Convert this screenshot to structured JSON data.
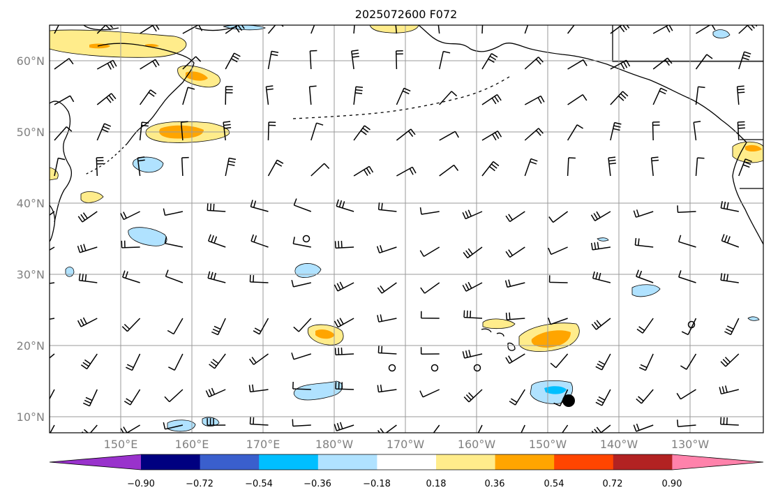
{
  "title": "2025072600 F072",
  "map": {
    "lat_labels": [
      "60°N",
      "50°N",
      "40°N",
      "30°N",
      "20°N",
      "10°N"
    ],
    "lon_labels": [
      "150°E",
      "160°E",
      "170°E",
      "180°W",
      "170°W",
      "160°W",
      "150°W",
      "140°W",
      "130°W"
    ],
    "calm_marker_color": "#000000"
  },
  "colorbar": {
    "colors": [
      "#9932cc",
      "#000080",
      "#3a5fcd",
      "#00bfff",
      "#b0e2ff",
      "#ffffff",
      "#ffec8b",
      "#ffa500",
      "#ff4500",
      "#b22222",
      "#ff82ab"
    ],
    "tick_labels": [
      "−0.90",
      "−0.72",
      "−0.54",
      "−0.36",
      "−0.18",
      "0.18",
      "0.36",
      "0.54",
      "0.72",
      "0.90"
    ]
  }
}
